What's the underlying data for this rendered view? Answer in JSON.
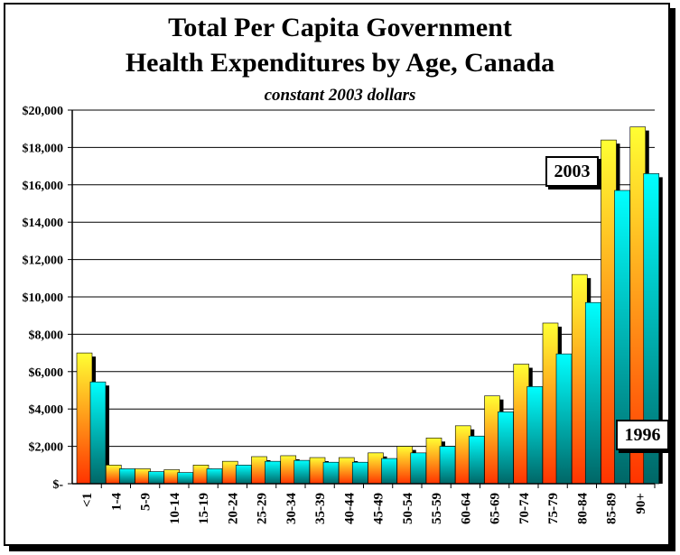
{
  "chart_data": {
    "type": "bar",
    "title": "Total Per Capita Government",
    "subtitle": "Health Expenditures by Age, Canada",
    "note": "constant 2003 dollars",
    "ylim": [
      0,
      20000
    ],
    "ytick_values": [
      0,
      2000,
      4000,
      6000,
      8000,
      10000,
      12000,
      14000,
      16000,
      18000,
      20000
    ],
    "ytick_labels": [
      "$-",
      "$2,000",
      "$4,000",
      "$6,000",
      "$8,000",
      "$10,000",
      "$12,000",
      "$14,000",
      "$16,000",
      "$18,000",
      "$20,000"
    ],
    "grid": true,
    "categories": [
      "<1",
      "1-4",
      "5-9",
      "10-14",
      "15-19",
      "20-24",
      "25-29",
      "30-34",
      "35-39",
      "40-44",
      "45-49",
      "50-54",
      "55-59",
      "60-64",
      "65-69",
      "70-74",
      "75-79",
      "80-84",
      "85-89",
      "90+"
    ],
    "series": [
      {
        "name": "2003",
        "colors": [
          "#ffff33",
          "#ff3300"
        ],
        "values": [
          7000,
          1000,
          800,
          750,
          1000,
          1200,
          1450,
          1500,
          1400,
          1400,
          1650,
          2000,
          2450,
          3100,
          4700,
          6400,
          8600,
          11200,
          18400,
          19100
        ]
      },
      {
        "name": "1996",
        "colors": [
          "#00ffff",
          "#006666"
        ],
        "values": [
          5450,
          800,
          650,
          600,
          800,
          1000,
          1200,
          1250,
          1150,
          1150,
          1350,
          1650,
          2000,
          2550,
          3850,
          5200,
          6950,
          9700,
          15700,
          16600
        ]
      }
    ]
  }
}
